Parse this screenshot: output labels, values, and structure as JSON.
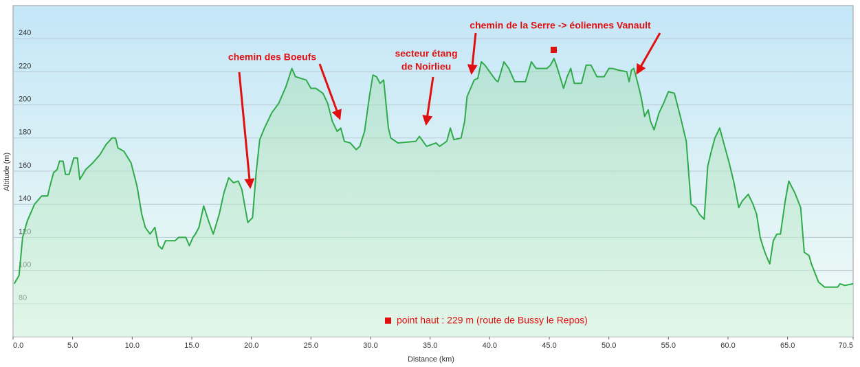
{
  "chart_data": {
    "type": "area",
    "x_label": "Distance  (km)",
    "y_label": "Altitude (m)",
    "color": "#2eaa48",
    "grid": true,
    "xlim": [
      0,
      70.5
    ],
    "ylim": [
      60,
      260
    ],
    "xticks": [
      {
        "value": 0,
        "label": "0.0"
      },
      {
        "value": 5,
        "label": "5.0"
      },
      {
        "value": 10,
        "label": "10.0"
      },
      {
        "value": 15,
        "label": "15.0"
      },
      {
        "value": 20,
        "label": "20.0"
      },
      {
        "value": 25,
        "label": "25.0"
      },
      {
        "value": 30,
        "label": "30.0"
      },
      {
        "value": 35,
        "label": "35.0"
      },
      {
        "value": 40,
        "label": "40.0"
      },
      {
        "value": 45,
        "label": "45.0"
      },
      {
        "value": 50,
        "label": "50.0"
      },
      {
        "value": 55,
        "label": "55.0"
      },
      {
        "value": 60,
        "label": "60.0"
      },
      {
        "value": 65,
        "label": "65.0"
      },
      {
        "value": 70.5,
        "label": "70.5"
      }
    ],
    "yticks": [
      80,
      100,
      120,
      140,
      160,
      180,
      200,
      220,
      240
    ],
    "x": [
      0.1,
      0.5,
      0.8,
      1.2,
      1.8,
      2.4,
      2.9,
      3.1,
      3.4,
      3.7,
      3.9,
      4.2,
      4.4,
      4.7,
      5.1,
      5.4,
      5.6,
      6.1,
      6.7,
      7.3,
      7.8,
      8.3,
      8.6,
      8.8,
      9.3,
      9.9,
      10.4,
      10.8,
      11.1,
      11.5,
      11.9,
      12.2,
      12.5,
      12.8,
      13.6,
      13.9,
      14.5,
      14.8,
      15.1,
      15.3,
      15.6,
      16.0,
      16.4,
      16.8,
      17.3,
      17.7,
      18.1,
      18.5,
      18.9,
      19.2,
      19.7,
      20.1,
      20.4,
      20.7,
      21.1,
      21.7,
      22.3,
      22.9,
      23.4,
      23.7,
      24.6,
      25.0,
      25.4,
      26.0,
      26.4,
      26.8,
      27.2,
      27.5,
      27.8,
      28.3,
      28.8,
      29.1,
      29.5,
      29.9,
      30.2,
      30.5,
      30.8,
      31.1,
      31.5,
      31.7,
      32.3,
      33.8,
      34.1,
      34.4,
      34.7,
      35.5,
      35.8,
      36.4,
      36.7,
      37.0,
      37.6,
      37.9,
      38.1,
      38.4,
      38.7,
      39.0,
      39.3,
      39.6,
      40.0,
      40.5,
      40.7,
      41.2,
      41.6,
      42.1,
      43.0,
      43.5,
      43.9,
      44.8,
      45.1,
      45.4,
      45.6,
      45.9,
      46.2,
      46.5,
      46.8,
      47.1,
      47.7,
      48.1,
      48.5,
      49.0,
      49.6,
      50.0,
      50.3,
      50.8,
      51.5,
      51.7,
      51.9,
      52.1,
      52.5,
      52.7,
      53.0,
      53.3,
      53.5,
      53.8,
      54.2,
      54.6,
      55.0,
      55.5,
      56.0,
      56.5,
      56.9,
      57.3,
      57.6,
      58.0,
      58.3,
      58.6,
      58.9,
      59.3,
      59.6,
      60.1,
      60.5,
      60.9,
      61.2,
      61.7,
      62.1,
      62.4,
      62.7,
      63.0,
      63.2,
      63.5,
      63.8,
      64.1,
      64.4,
      64.8,
      65.1,
      65.6,
      66.1,
      66.4,
      66.8,
      67.0,
      67.6,
      68.1,
      69.2,
      69.4,
      69.8,
      70.5
    ],
    "values": [
      92,
      97,
      120,
      130,
      140,
      145,
      145,
      151,
      159,
      161,
      166,
      166,
      158,
      158,
      168,
      168,
      155,
      161,
      165,
      170,
      176,
      180,
      180,
      174,
      172,
      165,
      151,
      134,
      126,
      122,
      126,
      115,
      113,
      118,
      118,
      120,
      120,
      115,
      120,
      122,
      126,
      139,
      130,
      122,
      134,
      147,
      156,
      153,
      154,
      149,
      129,
      132,
      159,
      179,
      186,
      195,
      201,
      211,
      222,
      217,
      215,
      210,
      210,
      207,
      201,
      190,
      184,
      186,
      178,
      177,
      173,
      175,
      184,
      205,
      218,
      217,
      213,
      215,
      186,
      180,
      177,
      178,
      181,
      178,
      175,
      177,
      175,
      178,
      186,
      179,
      180,
      190,
      205,
      210,
      215,
      216,
      226,
      224,
      220,
      215,
      214,
      226,
      222,
      214,
      214,
      226,
      222,
      222,
      224,
      228,
      224,
      217,
      210,
      217,
      222,
      213,
      213,
      224,
      224,
      217,
      217,
      222,
      222,
      221,
      220,
      214,
      221,
      222,
      211,
      205,
      193,
      197,
      190,
      185,
      195,
      201,
      208,
      207,
      193,
      178,
      140,
      138,
      134,
      131,
      163,
      172,
      180,
      186,
      178,
      165,
      153,
      138,
      142,
      146,
      140,
      134,
      120,
      113,
      109,
      104,
      118,
      122,
      122,
      142,
      154,
      147,
      138,
      111,
      109,
      104,
      93,
      90,
      90,
      92,
      91,
      92
    ],
    "annotations": [
      {
        "lines": [
          "chemin des Boeufs"
        ]
      },
      {
        "lines": [
          "secteur étang",
          "de Noirlieu"
        ]
      },
      {
        "lines": [
          "chemin de la Serre -> éoliennes Vanault"
        ]
      },
      {
        "lines": [
          "point haut : 229 m (route de Bussy le Repos)"
        ]
      }
    ]
  }
}
